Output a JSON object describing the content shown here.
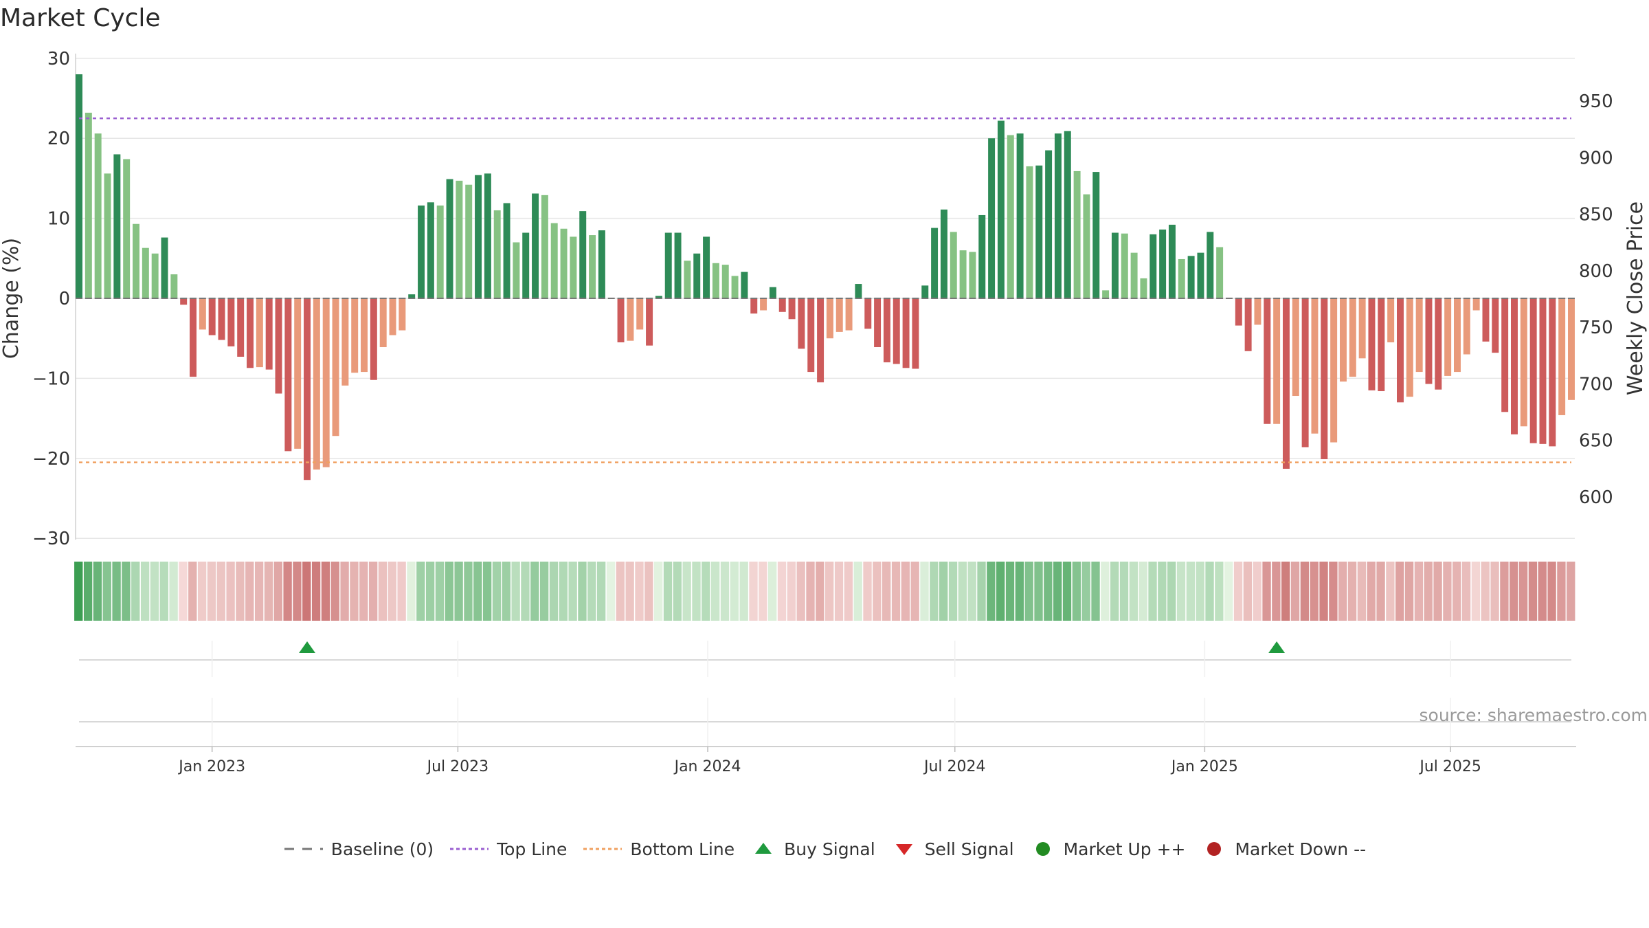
{
  "title": "Market Cycle",
  "source": "source: sharemaestro.com",
  "legend": [
    {
      "key": "baseline",
      "label": "Baseline (0)"
    },
    {
      "key": "top",
      "label": "Top Line"
    },
    {
      "key": "bottom",
      "label": "Bottom Line"
    },
    {
      "key": "buy",
      "label": "Buy Signal"
    },
    {
      "key": "sell",
      "label": "Sell Signal"
    },
    {
      "key": "up",
      "label": "Market Up ++"
    },
    {
      "key": "down",
      "label": "Market Down --"
    }
  ],
  "colors": {
    "pos_dark": "#2e8b57",
    "pos_light": "#86c283",
    "neg_dark": "#cd5b5b",
    "neg_light": "#e99a7a",
    "top_line": "#9a5fd0",
    "bottom_line": "#f0a060",
    "buy": "#1f9a3e",
    "sell": "#d62728",
    "up": "#228b22",
    "down": "#b22222",
    "baseline": "#777777"
  },
  "chart_data": {
    "type": "bar",
    "x_start": "2022-09-25",
    "x_step_days": 7,
    "y_left": {
      "label": "Change (%)",
      "ylim": [
        -30,
        30
      ],
      "ticks": [
        -30,
        -20,
        -10,
        0,
        10,
        20,
        30
      ]
    },
    "y_right": {
      "label": "Weekly Close Price",
      "ticks": [
        600,
        650,
        700,
        750,
        800,
        850,
        900,
        950
      ]
    },
    "x_ticks": [
      "Jan 2023",
      "Jul 2023",
      "Jan 2024",
      "Jul 2024",
      "Jan 2025",
      "Jul 2025"
    ],
    "top_line": 22.5,
    "bottom_line": -20.5,
    "values": [
      28,
      23.2,
      20.6,
      15.6,
      18,
      17.4,
      9.3,
      6.3,
      5.6,
      7.6,
      3,
      -0.8,
      -9.8,
      -3.9,
      -4.6,
      -5.2,
      -6,
      -7.3,
      -8.7,
      -8.6,
      -8.9,
      -11.9,
      -19.1,
      -18.8,
      -22.7,
      -21.4,
      -21.1,
      -17.2,
      -10.9,
      -9.3,
      -9.2,
      -10.2,
      -6.1,
      -4.6,
      -4,
      0.5,
      11.6,
      12,
      11.6,
      14.9,
      14.7,
      14.2,
      15.4,
      15.6,
      11,
      11.9,
      7,
      8.2,
      13.1,
      12.9,
      9.4,
      8.7,
      7.7,
      10.9,
      7.9,
      8.5,
      0,
      -5.5,
      -5.3,
      -3.9,
      -5.9,
      0.3,
      8.2,
      8.2,
      4.7,
      5.6,
      7.7,
      4.4,
      4.2,
      2.8,
      3.3,
      -1.9,
      -1.5,
      1.4,
      -1.7,
      -2.6,
      -6.3,
      -9.2,
      -10.5,
      -5,
      -4.2,
      -4,
      1.8,
      -3.8,
      -6.1,
      -8,
      -8.2,
      -8.7,
      -8.8,
      1.6,
      8.8,
      11.1,
      8.3,
      6,
      5.8,
      10.4,
      20,
      22.2,
      20.4,
      20.6,
      16.5,
      16.6,
      18.5,
      20.6,
      20.9,
      15.9,
      13,
      15.8,
      1,
      8.2,
      8.1,
      5.7,
      2.5,
      8,
      8.6,
      9.2,
      4.9,
      5.3,
      5.7,
      8.3,
      6.4,
      0,
      -3.4,
      -6.6,
      -3.3,
      -15.7,
      -15.7,
      -21.3,
      -12.2,
      -18.6,
      -16.9,
      -20.1,
      -18,
      -10.4,
      -9.8,
      -7.5,
      -11.5,
      -11.6,
      -5.5,
      -13,
      -12.3,
      -9.2,
      -10.7,
      -11.4,
      -9.7,
      -9.2,
      -7,
      -1.5,
      -5.4,
      -6.8,
      -14.2,
      -17,
      -16,
      -18.1,
      -18.2,
      -18.5,
      -14.6,
      -12.7
    ],
    "signals": [
      {
        "type": "buy",
        "index": 24
      },
      {
        "type": "buy",
        "index": 126
      }
    ]
  }
}
